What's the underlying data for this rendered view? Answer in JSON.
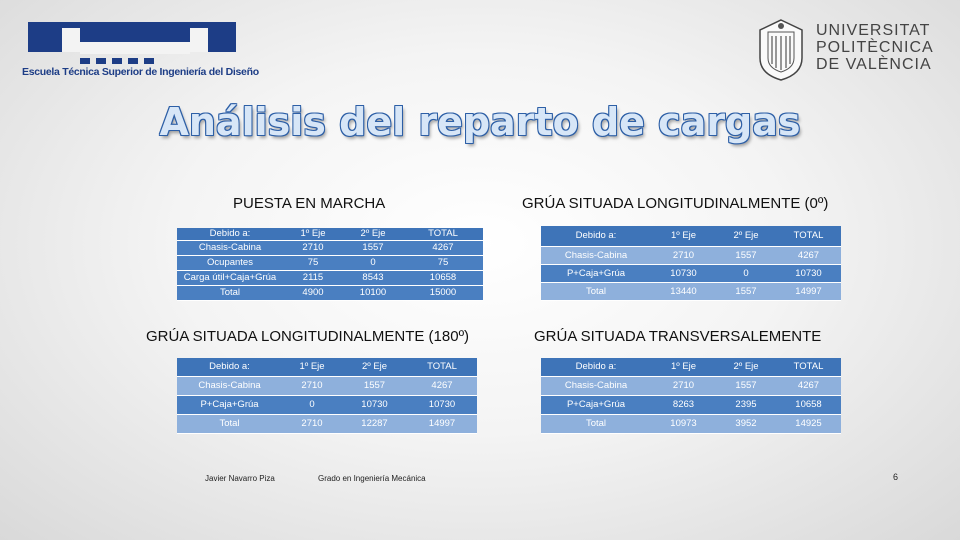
{
  "header": {
    "school_name": "Escuela Técnica Superior de Ingeniería del Diseño",
    "university_name_lines": [
      "UNIVERSITAT",
      "POLITÈCNICA",
      "DE VALÈNCIA"
    ]
  },
  "title": "Análisis del reparto de cargas",
  "sections": {
    "puesta": {
      "title": "PUESTA EN MARCHA",
      "header": [
        "Debido a:",
        "1º Eje",
        "2º Eje",
        "TOTAL"
      ],
      "rows": [
        [
          "Chasis-Cabina",
          "2710",
          "1557",
          "4267"
        ],
        [
          "Ocupantes",
          "75",
          "0",
          "75"
        ],
        [
          "Carga útil+Caja+Grúa",
          "2115",
          "8543",
          "10658"
        ],
        [
          "Total",
          "4900",
          "10100",
          "15000"
        ]
      ]
    },
    "long0": {
      "title": "GRÚA SITUADA LONGITUDINALMENTE (0º)",
      "header": [
        "Debido a:",
        "1º Eje",
        "2º Eje",
        "TOTAL"
      ],
      "rows": [
        [
          "Chasis-Cabina",
          "2710",
          "1557",
          "4267"
        ],
        [
          "P+Caja+Grúa",
          "10730",
          "0",
          "10730"
        ],
        [
          "Total",
          "13440",
          "1557",
          "14997"
        ]
      ]
    },
    "long180": {
      "title": "GRÚA SITUADA LONGITUDINALMENTE (180º)",
      "header": [
        "Debido a:",
        "1º Eje",
        "2º Eje",
        "TOTAL"
      ],
      "rows": [
        [
          "Chasis-Cabina",
          "2710",
          "1557",
          "4267"
        ],
        [
          "P+Caja+Grúa",
          "0",
          "10730",
          "10730"
        ],
        [
          "Total",
          "2710",
          "12287",
          "14997"
        ]
      ]
    },
    "trans": {
      "title": "GRÚA SITUADA TRANSVERSALEMENTE",
      "header": [
        "Debido a:",
        "1º Eje",
        "2º Eje",
        "TOTAL"
      ],
      "rows": [
        [
          "Chasis-Cabina",
          "2710",
          "1557",
          "4267"
        ],
        [
          "P+Caja+Grúa",
          "8263",
          "2395",
          "10658"
        ],
        [
          "Total",
          "10973",
          "3952",
          "14925"
        ]
      ]
    }
  },
  "footer": {
    "author": "Javier Navarro Piza",
    "degree": "Grado en Ingeniería Mecánica",
    "page": "6"
  },
  "colors": {
    "table_dark": "#3e74b8",
    "table_light": "#8eb0dc",
    "title_outline": "#2d5fa6"
  }
}
